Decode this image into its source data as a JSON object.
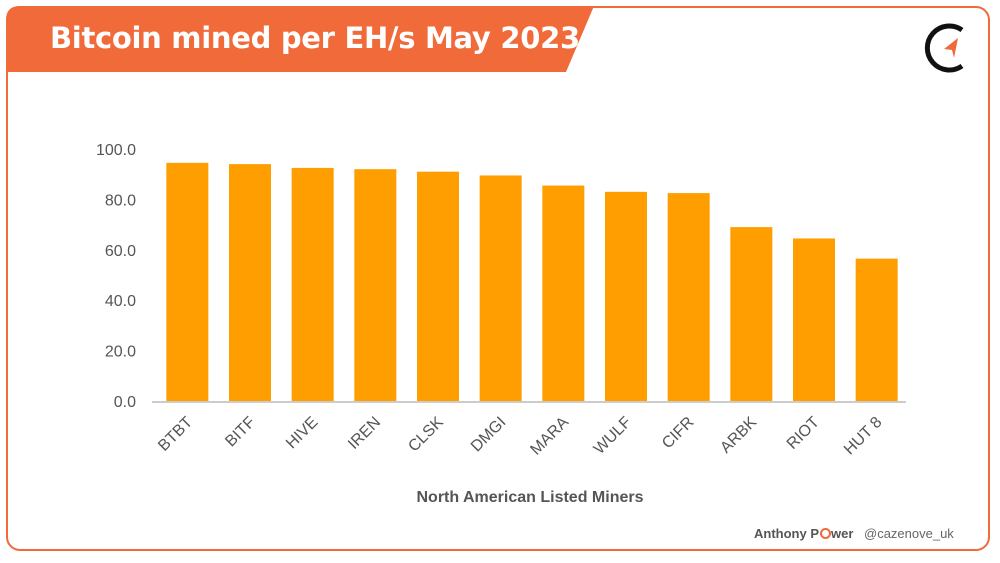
{
  "header": {
    "title": "Bitcoin mined per EH/s May 2023"
  },
  "footer": {
    "author_prefix": "Anthony P",
    "author_suffix": "wer",
    "handle": "@cazenove_uk"
  },
  "colors": {
    "accent": "#f06a3a",
    "bar": "#ff9e00",
    "axis_text": "#555555"
  },
  "chart_data": {
    "type": "bar",
    "title": "Bitcoin mined per EH/s May 2023",
    "xlabel": "North American Listed Miners",
    "ylabel": "",
    "ylim": [
      0,
      100
    ],
    "yticks": [
      "0.0",
      "20.0",
      "40.0",
      "60.0",
      "80.0",
      "100.0"
    ],
    "grid": false,
    "categories": [
      "BTBT",
      "BITF",
      "HIVE",
      "IREN",
      "CLSK",
      "DMGI",
      "MARA",
      "WULF",
      "CIFR",
      "ARBK",
      "RIOT",
      "HUT 8"
    ],
    "values": [
      94.5,
      94.0,
      92.5,
      92.0,
      91.0,
      89.5,
      85.5,
      83.0,
      82.5,
      69.0,
      64.5,
      56.5
    ]
  }
}
